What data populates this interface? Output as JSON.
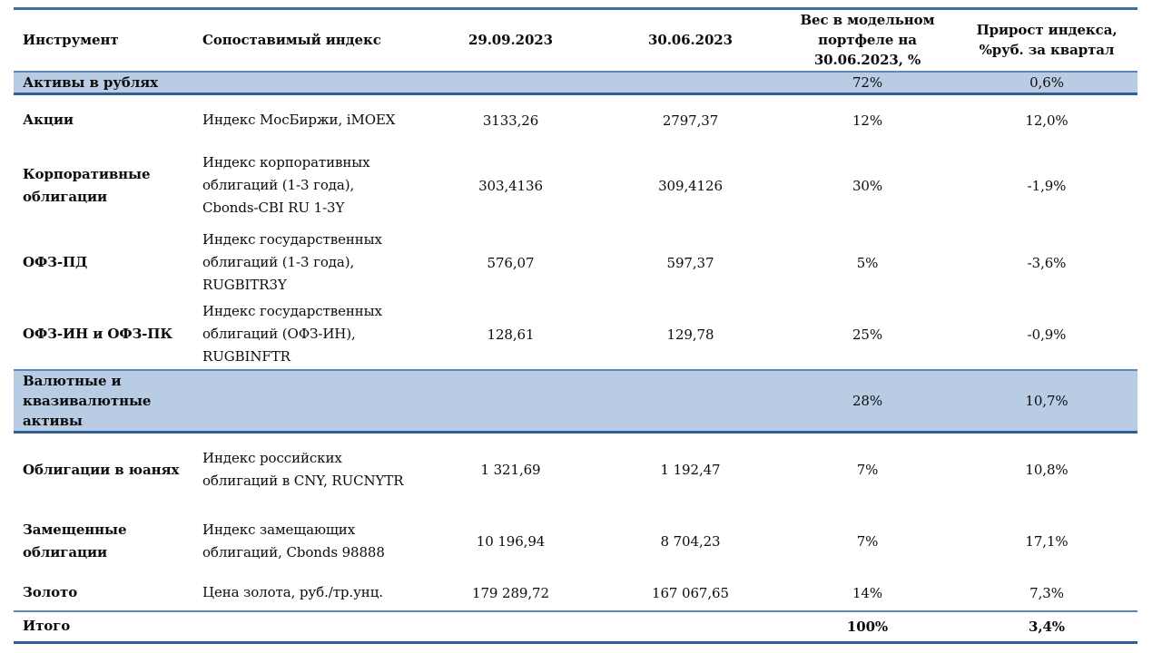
{
  "colors": {
    "section_band_fill": "#b8cce4",
    "border_dark_blue": "#2e5f97",
    "border_medium_blue": "#5d87bb",
    "text": "#0c0c0c"
  },
  "table": {
    "columns": [
      {
        "label": "Инструмент"
      },
      {
        "label": "Сопоставимый индекс"
      },
      {
        "label": "29.09.2023"
      },
      {
        "label": "30.06.2023"
      },
      {
        "label": "Вес в модельном\nпортфеле на\n30.06.2023, %"
      },
      {
        "label": "Прирост индекса,\n%руб. за квартал"
      }
    ],
    "rows": [
      {
        "type": "section",
        "instrument": "Активы в рублях",
        "weight": "72%",
        "growth": "0,6%"
      },
      {
        "type": "data",
        "instrument": "Акции",
        "index": "Индекс МосБиржи, iMOEX",
        "value_2909": "3133,26",
        "value_3006": "2797,37",
        "weight": "12%",
        "growth": "12,0%"
      },
      {
        "type": "data",
        "instrument": "Корпоративные облигации",
        "index": "Индекс корпоративных\nоблигаций (1-3 года),\nCbonds-CBI  RU 1-3Y",
        "value_2909": "303,4136",
        "value_3006": "309,4126",
        "weight": "30%",
        "growth": "-1,9%"
      },
      {
        "type": "data",
        "instrument": "ОФЗ-ПД",
        "index": "Индекс государственных\nоблигаций (1-3 года),\nRUGBITR3Y",
        "value_2909": "576,07",
        "value_3006": "597,37",
        "weight": "5%",
        "growth": "-3,6%"
      },
      {
        "type": "data",
        "instrument": "ОФЗ-ИН и ОФЗ-ПК",
        "index": "Индекс государственных\nоблигаций (ОФЗ-ИН),\nRUGBINFTR",
        "value_2909": "128,61",
        "value_3006": "129,78",
        "weight": "25%",
        "growth": "-0,9%"
      },
      {
        "type": "section",
        "instrument": "Валютные и\nквазивалютные\nактивы",
        "weight": "28%",
        "growth": "10,7%"
      },
      {
        "type": "data",
        "instrument": "Облигации в юанях",
        "index": "Индекс российских\nоблигаций  в CNY, RUCNYTR",
        "value_2909": "1 321,69",
        "value_3006": "1 192,47",
        "weight": "7%",
        "growth": "10,8%"
      },
      {
        "type": "data",
        "instrument": "Замещенные облигации",
        "index": "Индекс замещающих\nоблигаций,  Cbonds 98888",
        "value_2909": "10 196,94",
        "value_3006": "8 704,23",
        "weight": "7%",
        "growth": "17,1%"
      },
      {
        "type": "data",
        "instrument": "Золото",
        "index": "Цена золота, руб./тр.унц.",
        "value_2909": "179 289,72",
        "value_3006": "167 067,65",
        "weight": "14%",
        "growth": "7,3%"
      },
      {
        "type": "total",
        "instrument": "Итого",
        "weight": "100%",
        "growth": "3,4%"
      }
    ]
  }
}
